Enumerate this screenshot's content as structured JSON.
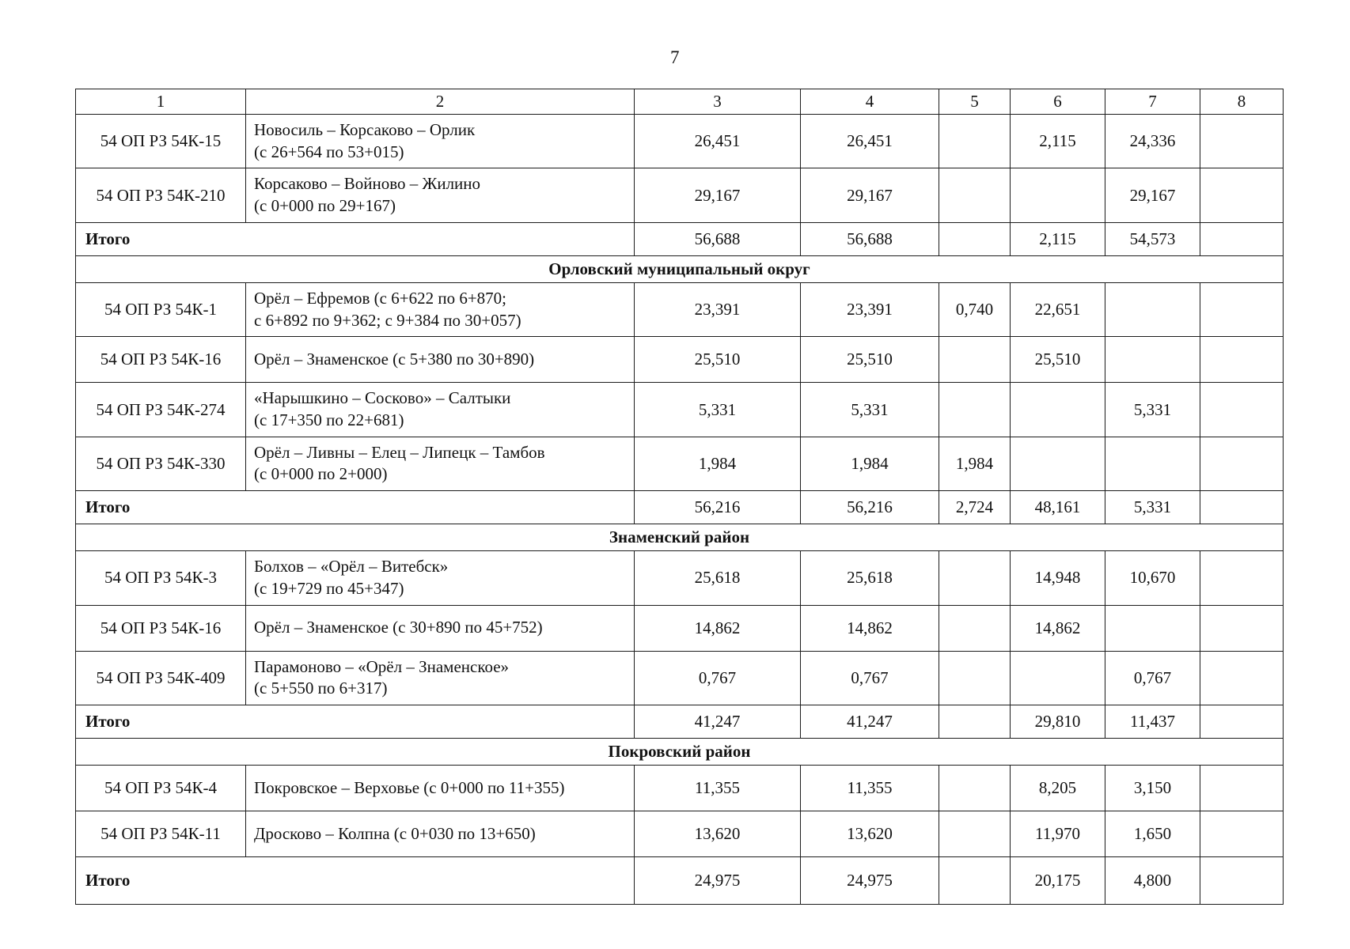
{
  "page": {
    "number": "7"
  },
  "table": {
    "columns": [
      "1",
      "2",
      "3",
      "4",
      "5",
      "6",
      "7",
      "8"
    ],
    "rows": [
      {
        "type": "road",
        "id": "54 ОП РЗ 54К-15",
        "name": "Новосиль – Корсаково – Орлик\n(с 26+564 по 53+015)",
        "values": [
          "26,451",
          "26,451",
          "",
          "2,115",
          "24,336",
          ""
        ]
      },
      {
        "type": "road",
        "id": "54 ОП РЗ 54К-210",
        "name": "Корсаково – Войново – Жилино\n(с 0+000 по 29+167)",
        "values": [
          "29,167",
          "29,167",
          "",
          "",
          "29,167",
          ""
        ]
      },
      {
        "type": "total",
        "label": "Итого",
        "values": [
          "56,688",
          "56,688",
          "",
          "2,115",
          "54,573",
          ""
        ]
      },
      {
        "type": "section",
        "label": "Орловский муниципальный округ"
      },
      {
        "type": "road",
        "id": "54 ОП РЗ 54К-1",
        "name": "Орёл – Ефремов (с 6+622 по 6+870;\nс 6+892 по 9+362; с 9+384 по 30+057)",
        "values": [
          "23,391",
          "23,391",
          "0,740",
          "22,651",
          "",
          ""
        ]
      },
      {
        "type": "road",
        "id": "54 ОП РЗ 54К-16",
        "name": "Орёл – Знаменское (с 5+380 по 30+890)",
        "values": [
          "25,510",
          "25,510",
          "",
          "25,510",
          "",
          ""
        ]
      },
      {
        "type": "road",
        "id": "54 ОП РЗ 54К-274",
        "name": "«Нарышкино – Сосково» – Салтыки\n(с 17+350 по 22+681)",
        "values": [
          "5,331",
          "5,331",
          "",
          "",
          "5,331",
          ""
        ]
      },
      {
        "type": "road",
        "id": "54 ОП РЗ 54К-330",
        "name": "Орёл – Ливны – Елец – Липецк – Тамбов\n(с 0+000 по 2+000)",
        "values": [
          "1,984",
          "1,984",
          "1,984",
          "",
          "",
          ""
        ]
      },
      {
        "type": "total",
        "label": "Итого",
        "values": [
          "56,216",
          "56,216",
          "2,724",
          "48,161",
          "5,331",
          ""
        ]
      },
      {
        "type": "section",
        "label": "Знаменский район"
      },
      {
        "type": "road",
        "id": "54 ОП РЗ 54К-3",
        "name": "Болхов – «Орёл – Витебск»\n(с 19+729 по 45+347)",
        "values": [
          "25,618",
          "25,618",
          "",
          "14,948",
          "10,670",
          ""
        ]
      },
      {
        "type": "road",
        "id": "54 ОП РЗ 54К-16",
        "name": "Орёл – Знаменское (с 30+890 по 45+752)",
        "values": [
          "14,862",
          "14,862",
          "",
          "14,862",
          "",
          ""
        ]
      },
      {
        "type": "road",
        "id": "54 ОП РЗ 54К-409",
        "name": "Парамоново – «Орёл – Знаменское»\n(с 5+550 по 6+317)",
        "values": [
          "0,767",
          "0,767",
          "",
          "",
          "0,767",
          ""
        ]
      },
      {
        "type": "total",
        "label": "Итого",
        "values": [
          "41,247",
          "41,247",
          "",
          "29,810",
          "11,437",
          ""
        ]
      },
      {
        "type": "section",
        "label": "Покровский  район"
      },
      {
        "type": "road",
        "id": "54 ОП РЗ 54К-4",
        "name": "Покровское – Верховье (с 0+000 по 11+355)",
        "values": [
          "11,355",
          "11,355",
          "",
          "8,205",
          "3,150",
          ""
        ]
      },
      {
        "type": "road",
        "id": "54 ОП РЗ 54К-11",
        "name": "Дросково – Колпна (с 0+030 по 13+650)",
        "values": [
          "13,620",
          "13,620",
          "",
          "11,970",
          "1,650",
          ""
        ]
      },
      {
        "type": "total",
        "label": "Итого",
        "values": [
          "24,975",
          "24,975",
          "",
          "20,175",
          "4,800",
          ""
        ]
      }
    ]
  }
}
